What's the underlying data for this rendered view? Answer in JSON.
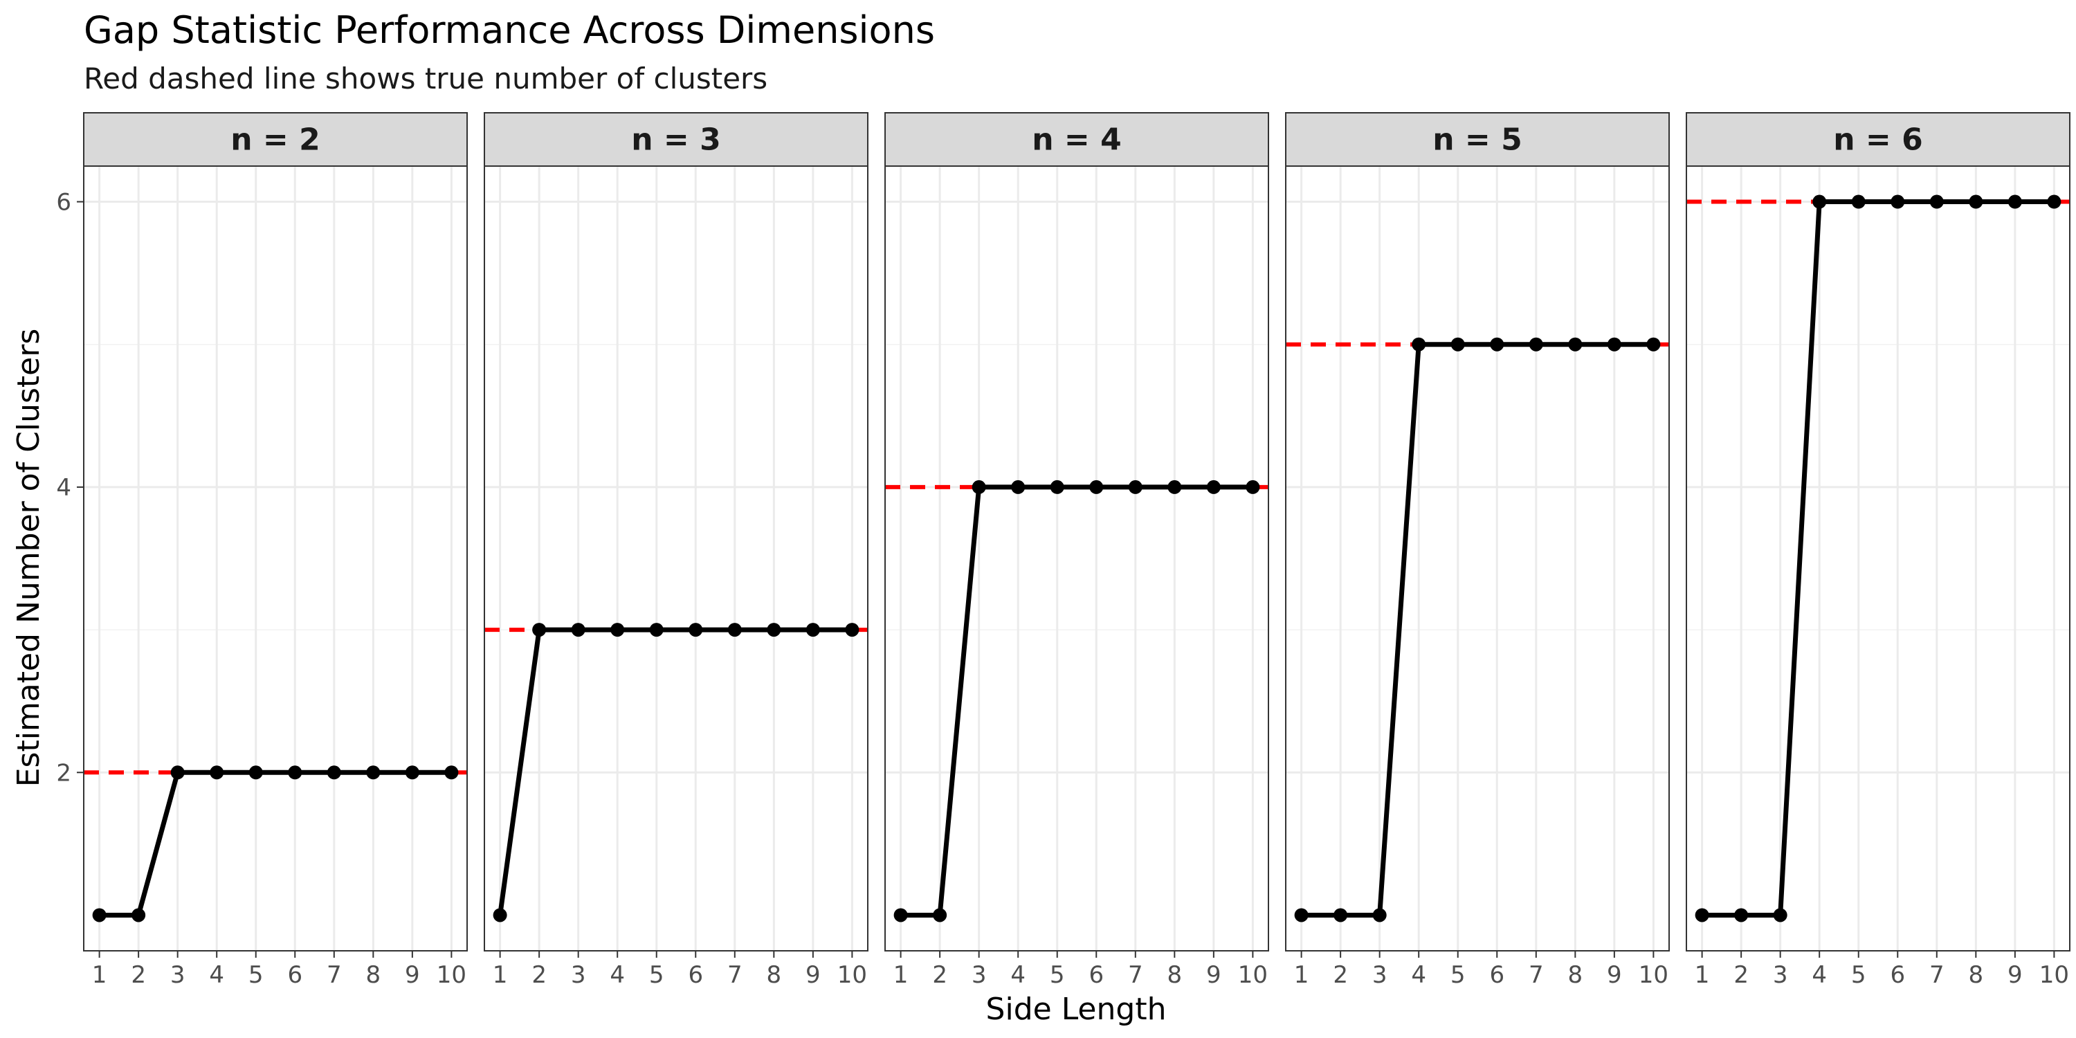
{
  "chart_data": {
    "type": "line",
    "title": "Gap Statistic Performance Across Dimensions",
    "subtitle": "Red dashed line shows true number of clusters",
    "xlabel": "Side Length",
    "ylabel": "Estimated Number of Clusters",
    "x": [
      1,
      2,
      3,
      4,
      5,
      6,
      7,
      8,
      9,
      10
    ],
    "x_ticks": [
      1,
      2,
      3,
      4,
      5,
      6,
      7,
      8,
      9,
      10
    ],
    "xlim": [
      0.6,
      10.4
    ],
    "ylim": [
      0.75,
      6.25
    ],
    "y_ticks": [
      2,
      4,
      6
    ],
    "grid": true,
    "line_color": "#000000",
    "reference_line_color": "#ff0000",
    "strip_color": "#d9d9d9",
    "panels": [
      {
        "label": "n = 2",
        "true_clusters": 2,
        "values": [
          1,
          1,
          2,
          2,
          2,
          2,
          2,
          2,
          2,
          2
        ]
      },
      {
        "label": "n = 3",
        "true_clusters": 3,
        "values": [
          1,
          3,
          3,
          3,
          3,
          3,
          3,
          3,
          3,
          3
        ]
      },
      {
        "label": "n = 4",
        "true_clusters": 4,
        "values": [
          1,
          1,
          4,
          4,
          4,
          4,
          4,
          4,
          4,
          4
        ]
      },
      {
        "label": "n = 5",
        "true_clusters": 5,
        "values": [
          1,
          1,
          1,
          5,
          5,
          5,
          5,
          5,
          5,
          5
        ]
      },
      {
        "label": "n = 6",
        "true_clusters": 6,
        "values": [
          1,
          1,
          1,
          6,
          6,
          6,
          6,
          6,
          6,
          6
        ]
      }
    ]
  }
}
